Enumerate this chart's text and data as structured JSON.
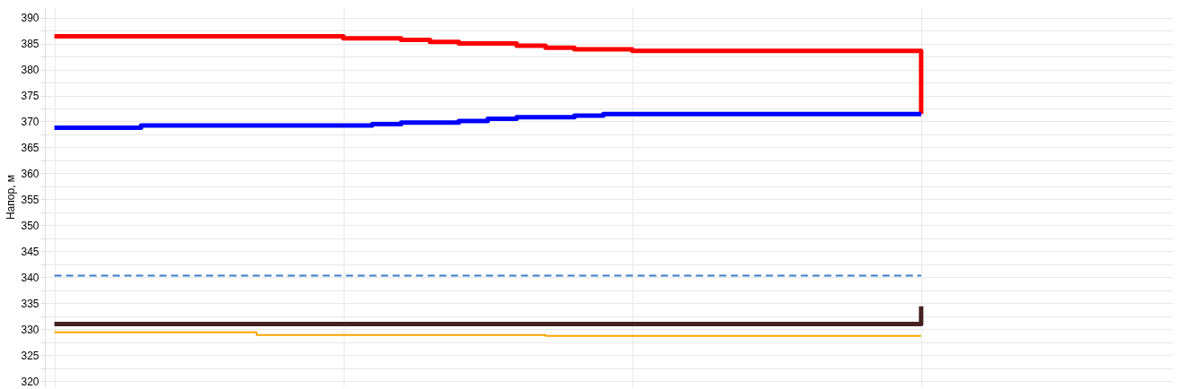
{
  "chart_data": {
    "type": "step",
    "ylabel": "Напор, м",
    "categories": [
      null,
      null,
      null,
      null,
      null,
      null,
      null,
      null,
      null,
      null,
      null,
      null,
      null,
      null,
      null,
      null,
      null,
      null,
      null,
      null,
      null,
      null,
      null,
      null,
      null,
      null,
      null,
      null,
      null,
      null,
      null
    ],
    "ylim": [
      319,
      392
    ],
    "yticks": [
      320,
      {
        "value": 322.5,
        "label": null
      },
      325,
      {
        "value": 327.5,
        "label": null
      },
      330,
      {
        "value": 332.5,
        "label": null
      },
      335,
      {
        "value": 337.5,
        "label": null
      },
      340,
      {
        "value": 342.5,
        "label": null
      },
      345,
      {
        "value": 347.5,
        "label": null
      },
      350,
      {
        "value": 352.5,
        "label": null
      },
      355,
      {
        "value": 357.5,
        "label": null
      },
      360,
      {
        "value": 362.5,
        "label": null
      },
      365,
      {
        "value": 367.5,
        "label": null
      },
      370,
      {
        "value": 372.5,
        "label": null
      },
      375,
      {
        "value": 377.5,
        "label": null
      },
      380,
      {
        "value": 382.5,
        "label": null
      },
      385,
      {
        "value": 387.5,
        "label": null
      },
      390
    ],
    "tick_labels": "y",
    "grid": true,
    "series": [
      {
        "color": "#ff0000",
        "values": [
          386.4,
          386.4,
          386.4,
          386.4,
          386.4,
          386.4,
          386.4,
          386.4,
          386.4,
          386.4,
          386.0,
          386.0,
          385.7,
          385.3,
          385.0,
          385.0,
          384.6,
          384.2,
          383.9,
          383.9,
          383.6,
          383.6,
          383.6,
          383.6,
          383.6,
          383.6,
          383.6,
          383.6,
          383.6,
          383.6,
          371.4
        ]
      },
      {
        "color": "#0000ff",
        "values": [
          368.8,
          368.8,
          368.8,
          369.2,
          369.2,
          369.2,
          369.2,
          369.2,
          369.2,
          369.2,
          369.2,
          369.5,
          369.8,
          369.8,
          370.1,
          370.5,
          370.8,
          370.8,
          371.1,
          371.4,
          371.4,
          371.4,
          371.4,
          371.4,
          371.4,
          371.4,
          371.4,
          371.4,
          371.4,
          371.4,
          371.4
        ]
      },
      {
        "color": "#3a7dc9",
        "type": "line",
        "line_style": "dashed",
        "values": [
          340.3,
          340.3,
          340.3,
          340.3,
          340.3,
          340.3,
          340.3,
          340.3,
          340.3,
          340.3,
          340.3,
          340.3,
          340.3,
          340.3,
          340.3,
          340.3,
          340.3,
          340.3,
          340.3,
          340.3,
          340.3,
          340.3,
          340.3,
          340.3,
          340.3,
          340.3,
          340.3,
          340.3,
          340.3,
          340.3,
          340.3
        ]
      },
      {
        "color": "#442222",
        "values": [
          331.0,
          331.0,
          331.0,
          331.0,
          331.0,
          331.0,
          331.0,
          331.0,
          331.0,
          331.0,
          331.0,
          331.0,
          331.0,
          331.0,
          331.0,
          331.0,
          331.0,
          331.0,
          331.0,
          331.0,
          331.0,
          331.0,
          331.0,
          331.0,
          331.0,
          331.0,
          331.0,
          331.0,
          331.0,
          331.0,
          334.4
        ]
      },
      {
        "color": "#ffa500",
        "values": [
          329.4,
          329.4,
          329.4,
          329.4,
          329.4,
          329.4,
          329.4,
          328.9,
          328.9,
          328.9,
          328.9,
          328.9,
          328.9,
          328.9,
          328.9,
          328.9,
          328.9,
          328.7,
          328.7,
          328.7,
          328.7,
          328.7,
          328.7,
          328.7,
          328.7,
          328.7,
          328.7,
          328.7,
          328.7,
          328.7,
          328.7
        ]
      }
    ]
  }
}
